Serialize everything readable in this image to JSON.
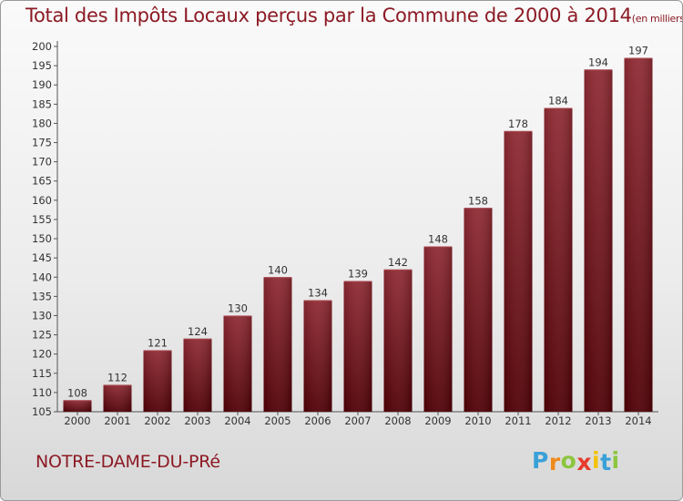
{
  "header": {
    "title": "Total des Impôts Locaux perçus par la Commune de 2000 à 2014",
    "unit": "(en milliers d'€)"
  },
  "footer": {
    "commune": "NOTRE-DAME-DU-PRé",
    "logo_letters": [
      {
        "ch": "P",
        "color": "#3aa0d8"
      },
      {
        "ch": "r",
        "color": "#f08a1c"
      },
      {
        "ch": "o",
        "color": "#8cc63f"
      },
      {
        "ch": "x",
        "color": "#e8392c"
      },
      {
        "ch": "i",
        "color": "#f4c20d"
      },
      {
        "ch": "t",
        "color": "#3aa0d8"
      },
      {
        "ch": "i",
        "color": "#8cc63f"
      }
    ]
  },
  "chart_data": {
    "type": "bar",
    "categories": [
      "2000",
      "2001",
      "2002",
      "2003",
      "2004",
      "2005",
      "2006",
      "2007",
      "2008",
      "2009",
      "2010",
      "2011",
      "2012",
      "2013",
      "2014"
    ],
    "values": [
      108,
      112,
      121,
      124,
      130,
      140,
      134,
      139,
      142,
      148,
      158,
      178,
      184,
      194,
      197
    ],
    "ylim": [
      105,
      200
    ],
    "yticks": [
      105,
      110,
      115,
      120,
      125,
      130,
      135,
      140,
      145,
      150,
      155,
      160,
      165,
      170,
      175,
      180,
      185,
      190,
      195,
      200
    ],
    "grid": false,
    "bar_color": "#6e0b12"
  }
}
